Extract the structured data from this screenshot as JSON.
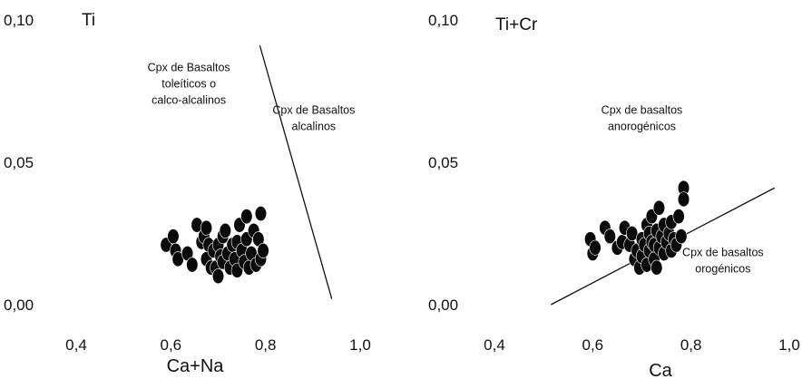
{
  "chart_data": [
    {
      "type": "scatter",
      "xlabel": "Ca+Na",
      "ylabel": "Ti",
      "xlim": [
        0.4,
        1.0
      ],
      "ylim": [
        0.0,
        0.1
      ],
      "xticks": [
        "0,4",
        "0,6",
        "0,8",
        "1,0"
      ],
      "yticks": [
        "0,00",
        "0,05",
        "0,10"
      ],
      "discriminant_line": [
        [
          0.788,
          0.091
        ],
        [
          0.94,
          0.002
        ]
      ],
      "annotations": [
        {
          "lines": [
            "Cpx  de  Basaltos",
            "toleíticos     o",
            "calco-alcalinos"
          ],
          "x": 0.638,
          "y": 0.082
        },
        {
          "lines": [
            "Cpx de Basaltos",
            "alcalinos"
          ],
          "x": 0.902,
          "y": 0.067
        }
      ],
      "points": [
        [
          0.59,
          0.021
        ],
        [
          0.605,
          0.024
        ],
        [
          0.61,
          0.019
        ],
        [
          0.615,
          0.016
        ],
        [
          0.635,
          0.018
        ],
        [
          0.645,
          0.014
        ],
        [
          0.655,
          0.028
        ],
        [
          0.665,
          0.022
        ],
        [
          0.67,
          0.024
        ],
        [
          0.675,
          0.027
        ],
        [
          0.675,
          0.016
        ],
        [
          0.68,
          0.021
        ],
        [
          0.685,
          0.013
        ],
        [
          0.69,
          0.019
        ],
        [
          0.695,
          0.013
        ],
        [
          0.7,
          0.01
        ],
        [
          0.7,
          0.021
        ],
        [
          0.705,
          0.017
        ],
        [
          0.71,
          0.024
        ],
        [
          0.71,
          0.015
        ],
        [
          0.715,
          0.026
        ],
        [
          0.72,
          0.018
        ],
        [
          0.725,
          0.013
        ],
        [
          0.73,
          0.021
        ],
        [
          0.735,
          0.016
        ],
        [
          0.74,
          0.022
        ],
        [
          0.74,
          0.012
        ],
        [
          0.745,
          0.028
        ],
        [
          0.75,
          0.019
        ],
        [
          0.755,
          0.015
        ],
        [
          0.76,
          0.031
        ],
        [
          0.76,
          0.023
        ],
        [
          0.765,
          0.013
        ],
        [
          0.77,
          0.018
        ],
        [
          0.775,
          0.026
        ],
        [
          0.78,
          0.014
        ],
        [
          0.785,
          0.023
        ],
        [
          0.79,
          0.032
        ],
        [
          0.79,
          0.016
        ],
        [
          0.795,
          0.019
        ]
      ]
    },
    {
      "type": "scatter",
      "xlabel": "Ca",
      "ylabel": "Ti+Cr",
      "xlim": [
        0.4,
        1.0
      ],
      "ylim": [
        0.0,
        0.1
      ],
      "xticks": [
        "0,4",
        "0,6",
        "0,8",
        "1,0"
      ],
      "yticks": [
        "0,00",
        "0,05",
        "0,10"
      ],
      "discriminant_line": [
        [
          0.515,
          0.0
        ],
        [
          0.97,
          0.041
        ]
      ],
      "annotations": [
        {
          "lines": [
            "Cpx  de  basaltos",
            "anorogénicos"
          ],
          "x": 0.7,
          "y": 0.067
        },
        {
          "lines": [
            "Cpx de basaltos",
            "orogénicos"
          ],
          "x": 0.865,
          "y": 0.017
        }
      ],
      "points": [
        [
          0.595,
          0.023
        ],
        [
          0.6,
          0.018
        ],
        [
          0.605,
          0.02
        ],
        [
          0.625,
          0.027
        ],
        [
          0.635,
          0.024
        ],
        [
          0.65,
          0.02
        ],
        [
          0.66,
          0.022
        ],
        [
          0.665,
          0.027
        ],
        [
          0.675,
          0.021
        ],
        [
          0.68,
          0.025
        ],
        [
          0.685,
          0.016
        ],
        [
          0.69,
          0.019
        ],
        [
          0.695,
          0.013
        ],
        [
          0.7,
          0.023
        ],
        [
          0.7,
          0.017
        ],
        [
          0.705,
          0.021
        ],
        [
          0.71,
          0.028
        ],
        [
          0.71,
          0.014
        ],
        [
          0.715,
          0.019
        ],
        [
          0.715,
          0.025
        ],
        [
          0.72,
          0.022
        ],
        [
          0.72,
          0.031
        ],
        [
          0.725,
          0.016
        ],
        [
          0.725,
          0.021
        ],
        [
          0.73,
          0.026
        ],
        [
          0.73,
          0.013
        ],
        [
          0.735,
          0.034
        ],
        [
          0.735,
          0.02
        ],
        [
          0.74,
          0.024
        ],
        [
          0.745,
          0.018
        ],
        [
          0.745,
          0.028
        ],
        [
          0.75,
          0.022
        ],
        [
          0.755,
          0.025
        ],
        [
          0.76,
          0.019
        ],
        [
          0.76,
          0.029
        ],
        [
          0.765,
          0.023
        ],
        [
          0.77,
          0.021
        ],
        [
          0.775,
          0.031
        ],
        [
          0.78,
          0.024
        ],
        [
          0.785,
          0.041
        ],
        [
          0.785,
          0.037
        ]
      ]
    }
  ]
}
